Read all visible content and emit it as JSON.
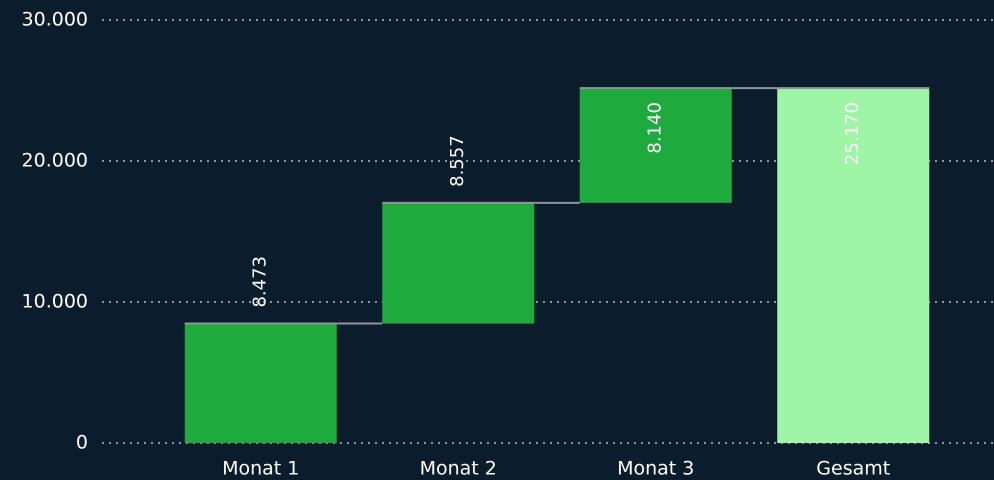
{
  "chart_data": {
    "type": "waterfall",
    "categories": [
      "Monat 1",
      "Monat 2",
      "Monat 3",
      "Gesamt"
    ],
    "values": [
      8473,
      8557,
      8140,
      25170
    ],
    "value_labels": [
      "8.473",
      "8.557",
      "8.140",
      "25.170"
    ],
    "totals": [
      false,
      false,
      false,
      true
    ],
    "color": "#1faa3d",
    "total_color": "#9ef5a6",
    "ylim": [
      0,
      30000
    ],
    "yticks": [
      0,
      {
        "value": 10000,
        "label": "10.000"
      },
      {
        "value": 20000,
        "label": "20.000"
      },
      {
        "value": 30000,
        "label": "30.000"
      }
    ],
    "grid": true
  }
}
